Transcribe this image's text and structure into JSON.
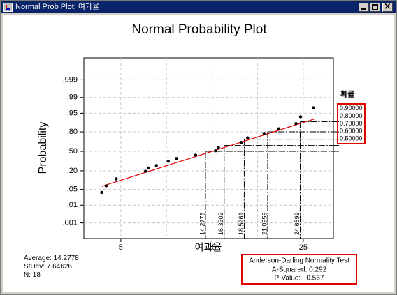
{
  "window": {
    "title": "Normal Prob Plot: 여과율"
  },
  "chart_data": {
    "type": "scatter",
    "title": "Normal Probability Plot",
    "xlabel": "여과율",
    "ylabel": "Probability",
    "x_ticks": [
      5,
      15,
      25
    ],
    "xlim": [
      0.95,
      28.3
    ],
    "y_scale": "normal-probability",
    "y_ticks": [
      ".001",
      ".01",
      ".05",
      ".20",
      ".50",
      ".80",
      ".95",
      ".99",
      ".999"
    ],
    "y_tick_values": [
      0.001,
      0.01,
      0.05,
      0.2,
      0.5,
      0.8,
      0.95,
      0.99,
      0.999
    ],
    "grid": true,
    "points": [
      [
        2.9,
        0.038
      ],
      [
        3.4,
        0.068
      ],
      [
        4.5,
        0.117
      ],
      [
        7.7,
        0.195
      ],
      [
        8.0,
        0.235
      ],
      [
        8.9,
        0.27
      ],
      [
        10.2,
        0.335
      ],
      [
        11.1,
        0.378
      ],
      [
        13.2,
        0.435
      ],
      [
        15.4,
        0.51
      ],
      [
        15.7,
        0.565
      ],
      [
        18.2,
        0.65
      ],
      [
        18.9,
        0.72
      ],
      [
        20.7,
        0.78
      ],
      [
        22.3,
        0.835
      ],
      [
        24.2,
        0.885
      ],
      [
        24.7,
        0.932
      ],
      [
        26.1,
        0.97
      ]
    ],
    "fit_line": {
      "x": [
        2.9,
        26.2
      ],
      "y": [
        0.0655,
        0.9185
      ],
      "color": "#e00000"
    },
    "percentile_header": "확률",
    "percentiles": [
      {
        "p": "0.50000",
        "p_value": 0.5,
        "x": "14.2778",
        "x_value": 14.2778
      },
      {
        "p": "0.60000",
        "p_value": 0.6,
        "x": "16.3302",
        "x_value": 16.3302
      },
      {
        "p": "0.70000",
        "p_value": 0.7,
        "x": "18.5261",
        "x_value": 18.5261
      },
      {
        "p": "0.80000",
        "p_value": 0.8,
        "x": "21.0959",
        "x_value": 21.0959
      },
      {
        "p": "0.90000",
        "p_value": 0.9,
        "x": "24.6599",
        "x_value": 24.6599
      }
    ],
    "summary": [
      "Average: 14.2778",
      "StDev: 7.64626",
      "N: 18"
    ],
    "normality_test": [
      "Anderson-Darling Normality Test",
      "A-Squared: 0.292",
      "P-Value:   0.567"
    ],
    "highlight_color": "#e00000"
  }
}
